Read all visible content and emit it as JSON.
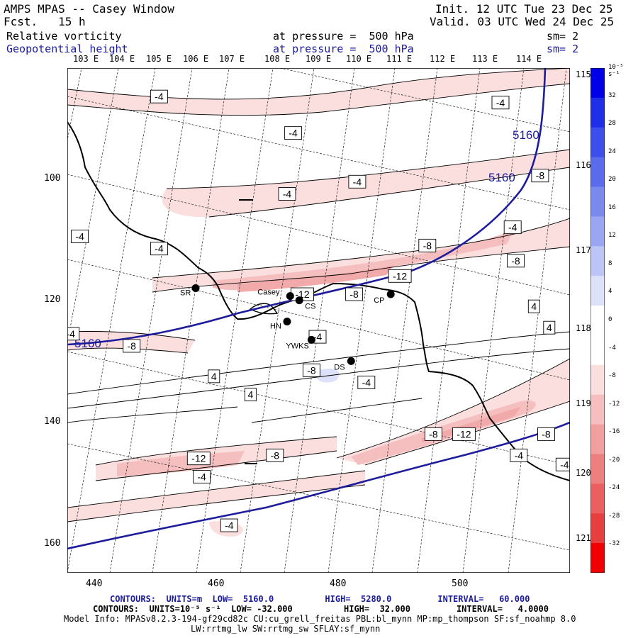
{
  "header": {
    "model_title": "AMPS MPAS -- Casey Window",
    "forecast": "Fcst.   15 h",
    "init": "Init. 12 UTC Tue 23 Dec 25",
    "valid": "Valid. 03 UTC Wed 24 Dec 25"
  },
  "fields": [
    {
      "name": "Relative vorticity",
      "pressure": "at pressure =  500 hPa",
      "smooth": "sm= 2",
      "color": "#000000"
    },
    {
      "name": "Geopotential height",
      "pressure": "at pressure =  500 hPa",
      "smooth": "sm= 2",
      "color": "#1c1c9c"
    }
  ],
  "top_longitudes": [
    "103 E",
    "104 E",
    "105 E",
    "106 E",
    "107 E",
    "108 E",
    "109 E",
    "110 E",
    "111 E",
    "112 E",
    "113 E",
    "114 E"
  ],
  "right_longitudes": [
    "115 E",
    "116 E",
    "117 E",
    "118 E",
    "119 E",
    "120 E",
    "121 E"
  ],
  "y_ticks": [
    "100",
    "120",
    "140",
    "160"
  ],
  "x_ticks": [
    "440",
    "460",
    "480",
    "500"
  ],
  "stations": [
    {
      "id": "SR",
      "x": 457,
      "y": 118
    },
    {
      "id": "Casey",
      "x": 472.5,
      "y": 119.3
    },
    {
      "id": "CS",
      "x": 474,
      "y": 120
    },
    {
      "id": "CP",
      "x": 489,
      "y": 119
    },
    {
      "id": "HN",
      "x": 472,
      "y": 123.5
    },
    {
      "id": "YWKS",
      "x": 476,
      "y": 126.5
    },
    {
      "id": "DS",
      "x": 482.5,
      "y": 130
    }
  ],
  "height_contour": {
    "label": "5160",
    "color": "#1c1c9c"
  },
  "vorticity_labels": [
    {
      "text": "-4",
      "x": 451,
      "y": 86.5
    },
    {
      "text": "-4",
      "x": 473,
      "y": 92.5
    },
    {
      "text": "-4",
      "x": 472,
      "y": 102.5
    },
    {
      "text": "-4",
      "x": 483.5,
      "y": 100.5
    },
    {
      "text": "-4",
      "x": 507,
      "y": 87.5
    },
    {
      "text": "-4",
      "x": 438,
      "y": 109.5
    },
    {
      "text": "-4",
      "x": 451,
      "y": 111.5
    },
    {
      "text": "-4",
      "x": 509,
      "y": 108
    },
    {
      "text": "-8",
      "x": 513.5,
      "y": 99.5
    },
    {
      "text": "-8",
      "x": 495,
      "y": 111
    },
    {
      "text": "-8",
      "x": 509.5,
      "y": 113.5
    },
    {
      "text": "-12",
      "x": 490.5,
      "y": 116
    },
    {
      "text": "-12",
      "x": 474.5,
      "y": 119
    },
    {
      "text": "-8",
      "x": 483,
      "y": 119
    },
    {
      "text": "4",
      "x": 512.5,
      "y": 121
    },
    {
      "text": "4",
      "x": 515,
      "y": 124.5
    },
    {
      "text": "-4",
      "x": 436.5,
      "y": 125.5
    },
    {
      "text": "-8",
      "x": 446.5,
      "y": 127.5
    },
    {
      "text": "-4",
      "x": 477,
      "y": 126
    },
    {
      "text": "-8",
      "x": 476,
      "y": 131.5
    },
    {
      "text": "4",
      "x": 460,
      "y": 132.5
    },
    {
      "text": "4",
      "x": 466,
      "y": 135.5
    },
    {
      "text": "-4",
      "x": 485,
      "y": 133.5
    },
    {
      "text": "-8",
      "x": 496,
      "y": 142
    },
    {
      "text": "-12",
      "x": 501,
      "y": 142
    },
    {
      "text": "-8",
      "x": 514.5,
      "y": 142
    },
    {
      "text": "-12",
      "x": 457.5,
      "y": 146
    },
    {
      "text": "-8",
      "x": 470,
      "y": 145.5
    },
    {
      "text": "-4",
      "x": 510,
      "y": 145.5
    },
    {
      "text": "-4",
      "x": 517.5,
      "y": 147
    },
    {
      "text": "-4",
      "x": 458,
      "y": 149
    },
    {
      "text": "-4",
      "x": 462.5,
      "y": 157
    }
  ],
  "colorbar": {
    "unit": "10⁻⁵ s⁻¹",
    "labels": [
      "32",
      "28",
      "24",
      "20",
      "16",
      "12",
      "8",
      "4",
      "0",
      "-4",
      "-8",
      "-12",
      "-16",
      "-20",
      "-24",
      "-28",
      "-32"
    ],
    "colors": [
      "#0000e6",
      "#1f2fe8",
      "#3d4fea",
      "#5a6cec",
      "#7a89ee",
      "#9aa6f2",
      "#bdc5f6",
      "#dde1fa",
      "#ffffff",
      "#ffffff",
      "#fbdfdf",
      "#f6bfbf",
      "#f29f9f",
      "#ee7f7f",
      "#ea5f5f",
      "#e63f3f",
      "#f00000"
    ]
  },
  "footer": {
    "line1": "CONTOURS:  UNITS=m  LOW=  5160.0          HIGH=  5280.0         INTERVAL=   60.000",
    "line2": "CONTOURS:  UNITS=10⁻⁵ s⁻¹  LOW= -32.000          HIGH=  32.000         INTERVAL=   4.0000",
    "line3": "Model Info: MPASv8.2.3-194-gf29cd82c CU:cu_grell_freitas PBL:bl_mynn MP:mp_thompson SF:sf_noahmp 8.0",
    "line4": "LW:rrtmg_lw SW:rrtmg_sw SFLAY:sf_mynn"
  }
}
